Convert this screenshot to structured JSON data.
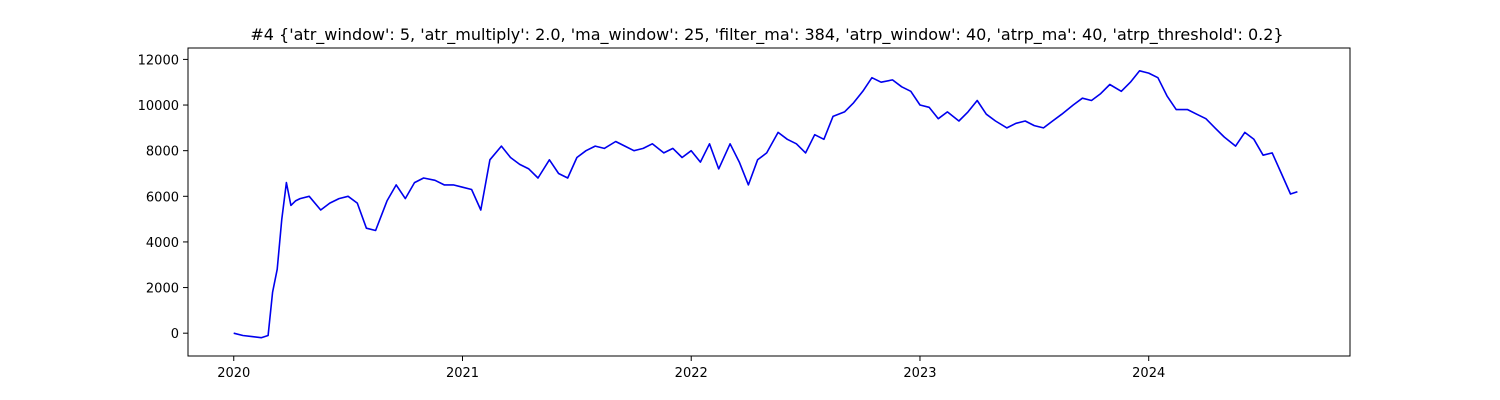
{
  "chart_data": {
    "type": "line",
    "title": "#4 {'atr_window': 5, 'atr_multiply': 2.0, 'ma_window': 25, 'filter_ma': 384, 'atrp_window': 40, 'atrp_ma': 40, 'atrp_threshold': 0.2}",
    "xlabel": "",
    "ylabel": "",
    "xlim": [
      2019.8,
      2024.88
    ],
    "ylim": [
      -1000,
      12500
    ],
    "x_ticks": [
      {
        "value": 2020,
        "label": "2020"
      },
      {
        "value": 2021,
        "label": "2021"
      },
      {
        "value": 2022,
        "label": "2022"
      },
      {
        "value": 2023,
        "label": "2023"
      },
      {
        "value": 2024,
        "label": "2024"
      }
    ],
    "y_ticks": [
      {
        "value": 0,
        "label": "0"
      },
      {
        "value": 2000,
        "label": "2000"
      },
      {
        "value": 4000,
        "label": "4000"
      },
      {
        "value": 6000,
        "label": "6000"
      },
      {
        "value": 8000,
        "label": "8000"
      },
      {
        "value": 10000,
        "label": "10000"
      },
      {
        "value": 12000,
        "label": "12000"
      }
    ],
    "grid": false,
    "series": [
      {
        "color": "#0000ee",
        "x": [
          2020.0,
          2020.04,
          2020.08,
          2020.12,
          2020.15,
          2020.17,
          2020.19,
          2020.21,
          2020.23,
          2020.25,
          2020.27,
          2020.29,
          2020.33,
          2020.38,
          2020.42,
          2020.46,
          2020.5,
          2020.54,
          2020.58,
          2020.62,
          2020.67,
          2020.71,
          2020.75,
          2020.79,
          2020.83,
          2020.88,
          2020.92,
          2020.96,
          2021.0,
          2021.04,
          2021.08,
          2021.12,
          2021.17,
          2021.21,
          2021.25,
          2021.29,
          2021.33,
          2021.38,
          2021.42,
          2021.46,
          2021.5,
          2021.54,
          2021.58,
          2021.62,
          2021.67,
          2021.71,
          2021.75,
          2021.79,
          2021.83,
          2021.88,
          2021.92,
          2021.96,
          2022.0,
          2022.04,
          2022.08,
          2022.12,
          2022.17,
          2022.21,
          2022.25,
          2022.29,
          2022.33,
          2022.38,
          2022.42,
          2022.46,
          2022.5,
          2022.54,
          2022.58,
          2022.62,
          2022.67,
          2022.71,
          2022.75,
          2022.79,
          2022.83,
          2022.88,
          2022.92,
          2022.96,
          2023.0,
          2023.04,
          2023.08,
          2023.12,
          2023.17,
          2023.21,
          2023.25,
          2023.29,
          2023.33,
          2023.38,
          2023.42,
          2023.46,
          2023.5,
          2023.54,
          2023.58,
          2023.62,
          2023.67,
          2023.71,
          2023.75,
          2023.79,
          2023.83,
          2023.88,
          2023.92,
          2023.96,
          2024.0,
          2024.04,
          2024.08,
          2024.12,
          2024.17,
          2024.21,
          2024.25,
          2024.29,
          2024.33,
          2024.38,
          2024.42,
          2024.46,
          2024.5,
          2024.54,
          2024.58,
          2024.62,
          2024.65
        ],
        "y": [
          0,
          -100,
          -150,
          -200,
          -100,
          1800,
          2800,
          5000,
          6600,
          5600,
          5800,
          5900,
          6000,
          5400,
          5700,
          5900,
          6000,
          5700,
          4600,
          4500,
          5800,
          6500,
          5900,
          6600,
          6800,
          6700,
          6500,
          6500,
          6400,
          6300,
          5400,
          7600,
          8200,
          7700,
          7400,
          7200,
          6800,
          7600,
          7000,
          6800,
          7700,
          8000,
          8200,
          8100,
          8400,
          8200,
          8000,
          8100,
          8300,
          7900,
          8100,
          7700,
          8000,
          7500,
          8300,
          7200,
          8300,
          7500,
          6500,
          7600,
          7900,
          8800,
          8500,
          8300,
          7900,
          8700,
          8500,
          9500,
          9700,
          10100,
          10600,
          11200,
          11000,
          11100,
          10800,
          10600,
          10000,
          9900,
          9400,
          9700,
          9300,
          9700,
          10200,
          9600,
          9300,
          9000,
          9200,
          9300,
          9100,
          9000,
          9300,
          9600,
          10000,
          10300,
          10200,
          10500,
          10900,
          10600,
          11000,
          11500,
          11400,
          11200,
          10400,
          9800,
          9800,
          9600,
          9400,
          9000,
          8600,
          8200,
          8800,
          8500,
          7800,
          7900,
          7000,
          6100,
          6200
        ]
      }
    ]
  }
}
